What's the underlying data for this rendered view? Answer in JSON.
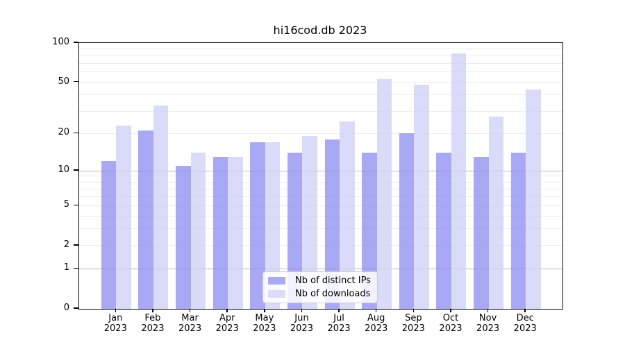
{
  "chart_data": {
    "type": "bar",
    "title": "hi16cod.db 2023",
    "categories": [
      "Jan",
      "Feb",
      "Mar",
      "Apr",
      "May",
      "Jun",
      "Jul",
      "Aug",
      "Sep",
      "Oct",
      "Nov",
      "Dec"
    ],
    "category_year": "2023",
    "series": [
      {
        "name": "Nb of distinct IPs",
        "color": "#a9a9f4",
        "bar_rgba": "rgba(139,139,242,0.75)",
        "values": [
          12,
          21,
          11,
          13,
          17,
          14,
          18,
          14,
          20,
          14,
          13,
          14
        ]
      },
      {
        "name": "Nb of downloads",
        "color": "#dbdbfa",
        "bar_rgba": "rgba(206,206,247,0.75)",
        "values": [
          23,
          33,
          14,
          13,
          17,
          19,
          25,
          53,
          48,
          83,
          27,
          44
        ]
      }
    ],
    "xlabel": "",
    "ylabel": "",
    "yscale": "log1p",
    "ylim": [
      0,
      100
    ],
    "ytick_values": [
      100,
      50,
      20,
      10,
      5,
      2,
      1,
      0
    ],
    "ytick_labels": [
      "100",
      "50",
      "20",
      "10",
      "5",
      "2",
      "1",
      "0"
    ],
    "grid": true,
    "grid_major_values": [
      1,
      10
    ],
    "grid_minor_values": [
      2,
      3,
      4,
      5,
      6,
      7,
      8,
      9,
      20,
      30,
      40,
      50,
      60,
      70,
      80,
      90
    ],
    "legend_position": "lower-center",
    "colors": {
      "grid_major": "#b3b3b3",
      "grid_minor": "#ececec",
      "axis": "#000000",
      "background": "#ffffff"
    }
  }
}
